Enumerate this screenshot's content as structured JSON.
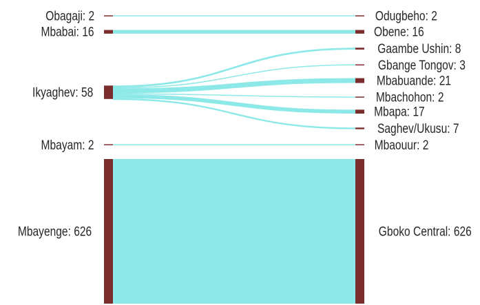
{
  "chart_data": {
    "type": "sankey",
    "title": "",
    "colors": {
      "node": "#7b2c2c",
      "link": "#8de8e8"
    },
    "sources": [
      {
        "name": "Obagaji",
        "label": "Obagaji: 2",
        "value": 2
      },
      {
        "name": "Mbabai",
        "label": "Mbabai: 16",
        "value": 16
      },
      {
        "name": "Ikyaghev",
        "label": "Ikyaghev: 58",
        "value": 58
      },
      {
        "name": "Mbayam",
        "label": "Mbayam: 2",
        "value": 2
      },
      {
        "name": "Mbayenge",
        "label": "Mbayenge: 626",
        "value": 626
      }
    ],
    "targets": [
      {
        "name": "Odugbeho",
        "label": "Odugbeho: 2",
        "value": 2
      },
      {
        "name": "Obene",
        "label": "Obene: 16",
        "value": 16
      },
      {
        "name": "Gaambe Ushin",
        "label": "Gaambe Ushin: 8",
        "value": 8
      },
      {
        "name": "Gbange Tongov",
        "label": "Gbange Tongov: 3",
        "value": 3
      },
      {
        "name": "Mbabuande",
        "label": "Mbabuande: 21",
        "value": 21
      },
      {
        "name": "Mbachohon",
        "label": "Mbachohon: 2",
        "value": 2
      },
      {
        "name": "Mbapa",
        "label": "Mbapa: 17",
        "value": 17
      },
      {
        "name": "Saghev/Ukusu",
        "label": "Saghev/Ukusu: 7",
        "value": 7
      },
      {
        "name": "Mbaouur",
        "label": "Mbaouur: 2",
        "value": 2
      },
      {
        "name": "Gboko Central",
        "label": "Gboko Central: 626",
        "value": 626
      }
    ],
    "links": [
      {
        "source": "Obagaji",
        "target": "Odugbeho",
        "value": 2
      },
      {
        "source": "Mbabai",
        "target": "Obene",
        "value": 16
      },
      {
        "source": "Ikyaghev",
        "target": "Gaambe Ushin",
        "value": 8
      },
      {
        "source": "Ikyaghev",
        "target": "Gbange Tongov",
        "value": 3
      },
      {
        "source": "Ikyaghev",
        "target": "Mbabuande",
        "value": 21
      },
      {
        "source": "Ikyaghev",
        "target": "Mbachohon",
        "value": 2
      },
      {
        "source": "Ikyaghev",
        "target": "Mbapa",
        "value": 17
      },
      {
        "source": "Ikyaghev",
        "target": "Saghev/Ukusu",
        "value": 7
      },
      {
        "source": "Mbayam",
        "target": "Mbaouur",
        "value": 2
      },
      {
        "source": "Mbayenge",
        "target": "Gboko Central",
        "value": 626
      }
    ]
  }
}
